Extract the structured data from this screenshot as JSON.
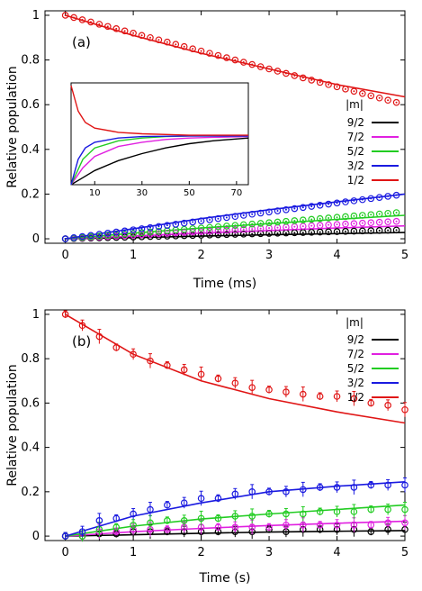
{
  "colors": {
    "9/2": "#000000",
    "7/2": "#e020e0",
    "5/2": "#22cc22",
    "3/2": "#1a1ae0",
    "1/2": "#e01515"
  },
  "chart_data": [
    {
      "type": "scatter",
      "panel_label": "(a)",
      "xlabel": "Time (ms)",
      "ylabel": "Relative population",
      "xlim": [
        -0.3,
        5
      ],
      "ylim": [
        -0.02,
        1.02
      ],
      "xticks": [
        "0",
        "1",
        "2",
        "3",
        "4",
        "5"
      ],
      "yticks": [
        "0",
        "0.2",
        "0.4",
        "0.6",
        "0.8",
        "1"
      ],
      "legend_title": "|m|",
      "legend_position": "right",
      "x": [
        0,
        0.125,
        0.25,
        0.375,
        0.5,
        0.625,
        0.75,
        0.875,
        1,
        1.125,
        1.25,
        1.375,
        1.5,
        1.625,
        1.75,
        1.875,
        2,
        2.125,
        2.25,
        2.375,
        2.5,
        2.625,
        2.75,
        2.875,
        3,
        3.125,
        3.25,
        3.375,
        3.5,
        3.625,
        3.75,
        3.875,
        4,
        4.125,
        4.25,
        4.375,
        4.5,
        4.625,
        4.75,
        4.875
      ],
      "series": [
        {
          "name": "9/2",
          "values": [
            0.0,
            0.001,
            0.002,
            0.003,
            0.004,
            0.005,
            0.006,
            0.007,
            0.008,
            0.009,
            0.01,
            0.011,
            0.012,
            0.013,
            0.014,
            0.015,
            0.016,
            0.017,
            0.018,
            0.019,
            0.02,
            0.021,
            0.022,
            0.023,
            0.024,
            0.025,
            0.026,
            0.027,
            0.028,
            0.029,
            0.03,
            0.031,
            0.032,
            0.033,
            0.034,
            0.035,
            0.036,
            0.037,
            0.038,
            0.039
          ],
          "fit": [
            [
              0,
              0.0
            ],
            [
              1,
              0.005
            ],
            [
              2,
              0.012
            ],
            [
              3,
              0.018
            ],
            [
              4,
              0.023
            ],
            [
              5,
              0.028
            ]
          ]
        },
        {
          "name": "7/2",
          "values": [
            0.0,
            0.002,
            0.004,
            0.006,
            0.008,
            0.01,
            0.012,
            0.014,
            0.016,
            0.018,
            0.02,
            0.022,
            0.024,
            0.026,
            0.028,
            0.03,
            0.032,
            0.034,
            0.036,
            0.038,
            0.04,
            0.042,
            0.044,
            0.046,
            0.048,
            0.05,
            0.052,
            0.054,
            0.056,
            0.058,
            0.06,
            0.062,
            0.064,
            0.066,
            0.068,
            0.07,
            0.072,
            0.074,
            0.076,
            0.078
          ],
          "fit": [
            [
              0,
              0.0
            ],
            [
              1,
              0.012
            ],
            [
              2,
              0.025
            ],
            [
              3,
              0.037
            ],
            [
              4,
              0.048
            ],
            [
              5,
              0.058
            ]
          ]
        },
        {
          "name": "5/2",
          "values": [
            0.0,
            0.003,
            0.006,
            0.009,
            0.012,
            0.015,
            0.018,
            0.021,
            0.024,
            0.027,
            0.03,
            0.033,
            0.036,
            0.039,
            0.042,
            0.045,
            0.048,
            0.051,
            0.054,
            0.057,
            0.06,
            0.063,
            0.066,
            0.069,
            0.072,
            0.075,
            0.078,
            0.081,
            0.084,
            0.087,
            0.09,
            0.093,
            0.096,
            0.099,
            0.102,
            0.105,
            0.108,
            0.111,
            0.114,
            0.117
          ],
          "fit": [
            [
              0,
              0.0
            ],
            [
              1,
              0.025
            ],
            [
              2,
              0.048
            ],
            [
              3,
              0.068
            ],
            [
              4,
              0.087
            ],
            [
              5,
              0.105
            ]
          ]
        },
        {
          "name": "3/2",
          "values": [
            0.0,
            0.005,
            0.01,
            0.015,
            0.02,
            0.025,
            0.03,
            0.035,
            0.04,
            0.045,
            0.05,
            0.055,
            0.06,
            0.065,
            0.07,
            0.075,
            0.08,
            0.085,
            0.09,
            0.095,
            0.1,
            0.105,
            0.11,
            0.115,
            0.12,
            0.125,
            0.13,
            0.135,
            0.14,
            0.145,
            0.15,
            0.155,
            0.16,
            0.165,
            0.17,
            0.175,
            0.18,
            0.185,
            0.19,
            0.195
          ],
          "fit": [
            [
              0,
              0.0
            ],
            [
              1,
              0.045
            ],
            [
              2,
              0.09
            ],
            [
              3,
              0.13
            ],
            [
              4,
              0.165
            ],
            [
              5,
              0.2
            ]
          ]
        },
        {
          "name": "1/2",
          "values": [
            1.0,
            0.99,
            0.98,
            0.97,
            0.96,
            0.95,
            0.94,
            0.93,
            0.92,
            0.91,
            0.9,
            0.89,
            0.88,
            0.87,
            0.86,
            0.85,
            0.84,
            0.83,
            0.82,
            0.81,
            0.8,
            0.79,
            0.78,
            0.77,
            0.76,
            0.75,
            0.74,
            0.73,
            0.72,
            0.71,
            0.7,
            0.69,
            0.68,
            0.67,
            0.66,
            0.65,
            0.64,
            0.63,
            0.62,
            0.61
          ],
          "fit": [
            [
              0,
              1.0
            ],
            [
              1,
              0.91
            ],
            [
              2,
              0.83
            ],
            [
              3,
              0.76
            ],
            [
              4,
              0.69
            ],
            [
              5,
              0.635
            ]
          ]
        }
      ],
      "inset": {
        "xlim": [
          0,
          75
        ],
        "ylim": [
          0,
          0.72
        ],
        "xticks": [
          "10",
          "30",
          "50",
          "70"
        ],
        "series": [
          {
            "name": "9/2",
            "fit": [
              [
                0,
                0.0
              ],
              [
                5,
                0.05
              ],
              [
                10,
                0.1
              ],
              [
                20,
                0.17
              ],
              [
                30,
                0.22
              ],
              [
                40,
                0.26
              ],
              [
                50,
                0.29
              ],
              [
                60,
                0.31
              ],
              [
                75,
                0.33
              ]
            ]
          },
          {
            "name": "7/2",
            "fit": [
              [
                0,
                0.0
              ],
              [
                5,
                0.12
              ],
              [
                10,
                0.2
              ],
              [
                20,
                0.27
              ],
              [
                30,
                0.3
              ],
              [
                40,
                0.32
              ],
              [
                50,
                0.33
              ],
              [
                60,
                0.335
              ],
              [
                75,
                0.34
              ]
            ]
          },
          {
            "name": "5/2",
            "fit": [
              [
                0,
                0.0
              ],
              [
                5,
                0.18
              ],
              [
                10,
                0.26
              ],
              [
                20,
                0.31
              ],
              [
                30,
                0.33
              ],
              [
                40,
                0.34
              ],
              [
                50,
                0.345
              ],
              [
                75,
                0.345
              ]
            ]
          },
          {
            "name": "3/2",
            "fit": [
              [
                0,
                0.0
              ],
              [
                3,
                0.18
              ],
              [
                6,
                0.26
              ],
              [
                10,
                0.3
              ],
              [
                20,
                0.33
              ],
              [
                30,
                0.34
              ],
              [
                50,
                0.345
              ],
              [
                75,
                0.345
              ]
            ]
          },
          {
            "name": "1/2",
            "fit": [
              [
                0,
                0.7
              ],
              [
                3,
                0.52
              ],
              [
                6,
                0.44
              ],
              [
                10,
                0.4
              ],
              [
                20,
                0.37
              ],
              [
                30,
                0.36
              ],
              [
                50,
                0.35
              ],
              [
                75,
                0.35
              ]
            ]
          }
        ]
      }
    },
    {
      "type": "scatter",
      "panel_label": "(b)",
      "xlabel": "Time (s)",
      "ylabel": "Relative population",
      "xlim": [
        -0.3,
        5
      ],
      "ylim": [
        -0.02,
        1.02
      ],
      "xticks": [
        "0",
        "1",
        "2",
        "3",
        "4",
        "5"
      ],
      "yticks": [
        "0",
        "0.2",
        "0.4",
        "0.6",
        "0.8",
        "1"
      ],
      "legend_title": "|m|",
      "legend_position": "top-right",
      "x": [
        0,
        0.25,
        0.5,
        0.75,
        1,
        1.25,
        1.5,
        1.75,
        2,
        2.25,
        2.5,
        2.75,
        3,
        3.25,
        3.5,
        3.75,
        4,
        4.25,
        4.5,
        4.75,
        5
      ],
      "series": [
        {
          "name": "9/2",
          "values": [
            0.0,
            0.0,
            0.01,
            0.01,
            0.02,
            0.02,
            0.02,
            0.02,
            0.02,
            0.02,
            0.02,
            0.02,
            0.03,
            0.02,
            0.03,
            0.03,
            0.03,
            0.03,
            0.02,
            0.03,
            0.03
          ],
          "fit": [
            [
              0,
              0.0
            ],
            [
              1,
              0.006
            ],
            [
              2,
              0.013
            ],
            [
              3,
              0.018
            ],
            [
              4,
              0.022
            ],
            [
              5,
              0.025
            ]
          ]
        },
        {
          "name": "7/2",
          "values": [
            0.0,
            0.0,
            0.02,
            0.02,
            0.03,
            0.03,
            0.03,
            0.04,
            0.04,
            0.04,
            0.04,
            0.04,
            0.04,
            0.05,
            0.05,
            0.05,
            0.05,
            0.05,
            0.05,
            0.06,
            0.06
          ],
          "fit": [
            [
              0,
              0.0
            ],
            [
              1,
              0.02
            ],
            [
              2,
              0.035
            ],
            [
              3,
              0.048
            ],
            [
              4,
              0.058
            ],
            [
              5,
              0.067
            ]
          ]
        },
        {
          "name": "5/2",
          "values": [
            0.0,
            0.0,
            0.03,
            0.04,
            0.05,
            0.06,
            0.07,
            0.07,
            0.08,
            0.08,
            0.09,
            0.09,
            0.1,
            0.1,
            0.1,
            0.11,
            0.11,
            0.11,
            0.12,
            0.12,
            0.12
          ],
          "fit": [
            [
              0,
              0.0
            ],
            [
              1,
              0.045
            ],
            [
              2,
              0.077
            ],
            [
              3,
              0.1
            ],
            [
              4,
              0.12
            ],
            [
              5,
              0.14
            ]
          ]
        },
        {
          "name": "3/2",
          "values": [
            0.0,
            0.02,
            0.07,
            0.08,
            0.1,
            0.12,
            0.14,
            0.15,
            0.17,
            0.17,
            0.19,
            0.2,
            0.2,
            0.2,
            0.21,
            0.22,
            0.22,
            0.22,
            0.23,
            0.23,
            0.23
          ],
          "fit": [
            [
              0,
              0.0
            ],
            [
              1,
              0.09
            ],
            [
              2,
              0.15
            ],
            [
              3,
              0.2
            ],
            [
              4,
              0.225
            ],
            [
              5,
              0.245
            ]
          ]
        },
        {
          "name": "1/2",
          "values": [
            1.0,
            0.95,
            0.9,
            0.85,
            0.82,
            0.79,
            0.77,
            0.75,
            0.73,
            0.71,
            0.69,
            0.67,
            0.66,
            0.65,
            0.64,
            0.63,
            0.63,
            0.62,
            0.6,
            0.59,
            0.57
          ],
          "fit": [
            [
              0,
              1.0
            ],
            [
              1,
              0.82
            ],
            [
              2,
              0.7
            ],
            [
              3,
              0.62
            ],
            [
              4,
              0.56
            ],
            [
              5,
              0.51
            ]
          ]
        }
      ]
    }
  ]
}
